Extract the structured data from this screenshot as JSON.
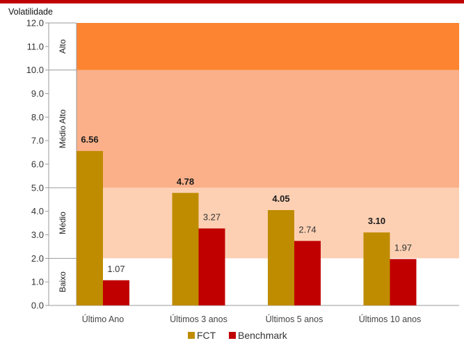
{
  "chart_data": {
    "type": "bar",
    "ylabel": "Volatilidade",
    "ylim": [
      0,
      12
    ],
    "yticks": [
      "0.0",
      "1.0",
      "2.0",
      "3.0",
      "4.0",
      "5.0",
      "6.0",
      "7.0",
      "8.0",
      "9.0",
      "10.0",
      "11.0",
      "12.0"
    ],
    "categories": [
      "Último Ano",
      "Últimos 3 anos",
      "Últimos 5 anos",
      "Últimos 10 anos"
    ],
    "series": [
      {
        "name": "FCT",
        "values": [
          6.56,
          4.78,
          4.05,
          3.1
        ],
        "labels": [
          "6.56",
          "4.78",
          "4.05",
          "3.10"
        ],
        "color": "#bf8c00"
      },
      {
        "name": "Benchmark",
        "values": [
          1.07,
          3.27,
          2.74,
          1.97
        ],
        "labels": [
          "1.07",
          "3.27",
          "2.74",
          "1.97"
        ],
        "color": "#c00000"
      }
    ],
    "zones": [
      {
        "label": "Baixo",
        "from": 0,
        "to": 2,
        "color": "#ffffff"
      },
      {
        "label": "Médio",
        "from": 2,
        "to": 5,
        "color": "#fdd0b3"
      },
      {
        "label": "Médio Alto",
        "from": 5,
        "to": 10,
        "color": "#fbb089"
      },
      {
        "label": "Alto",
        "from": 10,
        "to": 12,
        "color": "#fd8431"
      }
    ],
    "legend_position": "bottom",
    "grid": false
  },
  "colors": {
    "top_bar": "#c00000"
  }
}
